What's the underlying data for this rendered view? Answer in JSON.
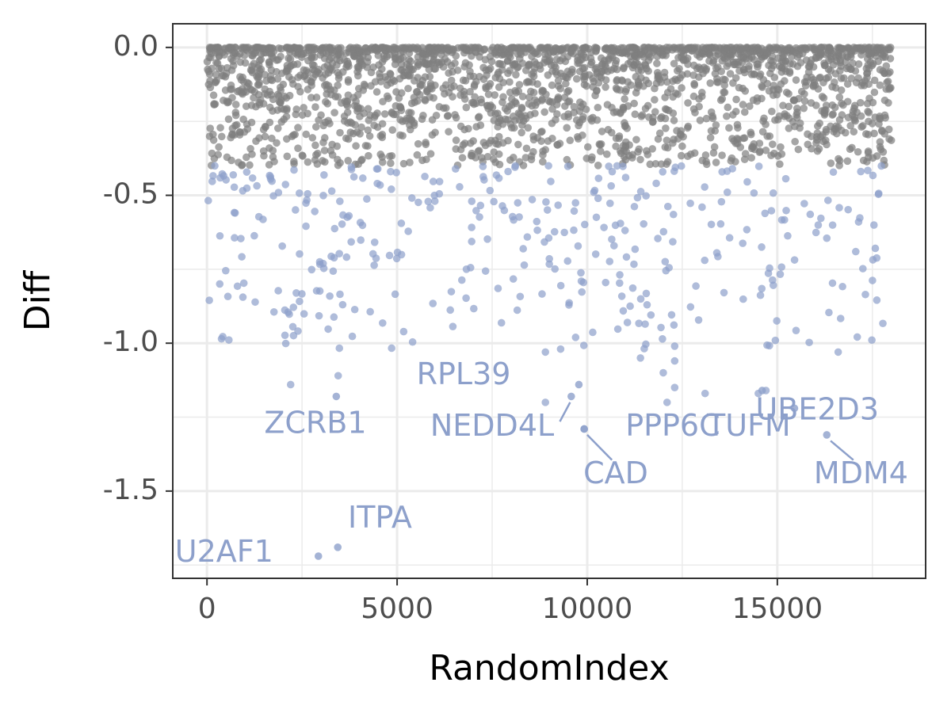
{
  "chart_data": {
    "type": "scatter",
    "title": "",
    "xlabel": "RandomIndex",
    "ylabel": "Diff",
    "xlim": [
      -900,
      18900
    ],
    "ylim": [
      -1.795,
      0.08
    ],
    "x_ticks": [
      0,
      5000,
      10000,
      15000
    ],
    "y_ticks": [
      0.0,
      -0.5,
      -1.0,
      -1.5
    ],
    "x_tick_labels": [
      "0",
      "5000",
      "10000",
      "15000"
    ],
    "y_tick_labels": [
      "0.0",
      "-0.5",
      "-1.0",
      "-1.5"
    ],
    "grid": true,
    "legend": "none",
    "colors": {
      "unlabeled": "#7f7f7f",
      "highlighted": "#8da0cb",
      "panel_border": "#333333",
      "grid": "#ebebeb"
    },
    "series": [
      {
        "group": "dense",
        "color": "#7f7f7f",
        "description_rule": "Diff > -0.4",
        "x_range": [
          0,
          18000
        ],
        "y_range": [
          -0.4,
          0.0
        ],
        "n_points": 2200
      },
      {
        "group": "highlighted",
        "color": "#8da0cb",
        "description_rule": "Diff <= -0.4",
        "x_range": [
          0,
          18000
        ],
        "y_range": [
          -1.02,
          -0.4
        ],
        "n_points": 360
      }
    ],
    "labeled_points": [
      {
        "gene": "U2AF1",
        "x": 2930,
        "y": -1.72,
        "label_x": 450,
        "label_y": -1.71
      },
      {
        "gene": "ITPA",
        "x": 3440,
        "y": -1.69,
        "label_x": 4550,
        "label_y": -1.595
      },
      {
        "gene": "ZCRB1",
        "x": 3400,
        "y": -1.18,
        "label_x": 2850,
        "label_y": -1.275
      },
      {
        "gene": "RPL39",
        "x": 9780,
        "y": -1.14,
        "label_x": 6750,
        "label_y": -1.11
      },
      {
        "gene": "NEDD4L",
        "x": 9580,
        "y": -1.18,
        "label_x": 7500,
        "label_y": -1.285
      },
      {
        "gene": "PPP6C",
        "x": 9920,
        "y": -1.29,
        "label_x": 12250,
        "label_y": -1.285
      },
      {
        "gene": "CAD",
        "x": 9920,
        "y": -1.29,
        "label_x": 10750,
        "label_y": -1.445
      },
      {
        "gene": "TUFM",
        "x": 14600,
        "y": -1.16,
        "label_x": 14250,
        "label_y": -1.285
      },
      {
        "gene": "UBE2D3",
        "x": 15450,
        "y": -1.22,
        "label_x": 16050,
        "label_y": -1.23
      },
      {
        "gene": "MDM4",
        "x": 16300,
        "y": -1.31,
        "label_x": 17200,
        "label_y": -1.445
      }
    ]
  }
}
